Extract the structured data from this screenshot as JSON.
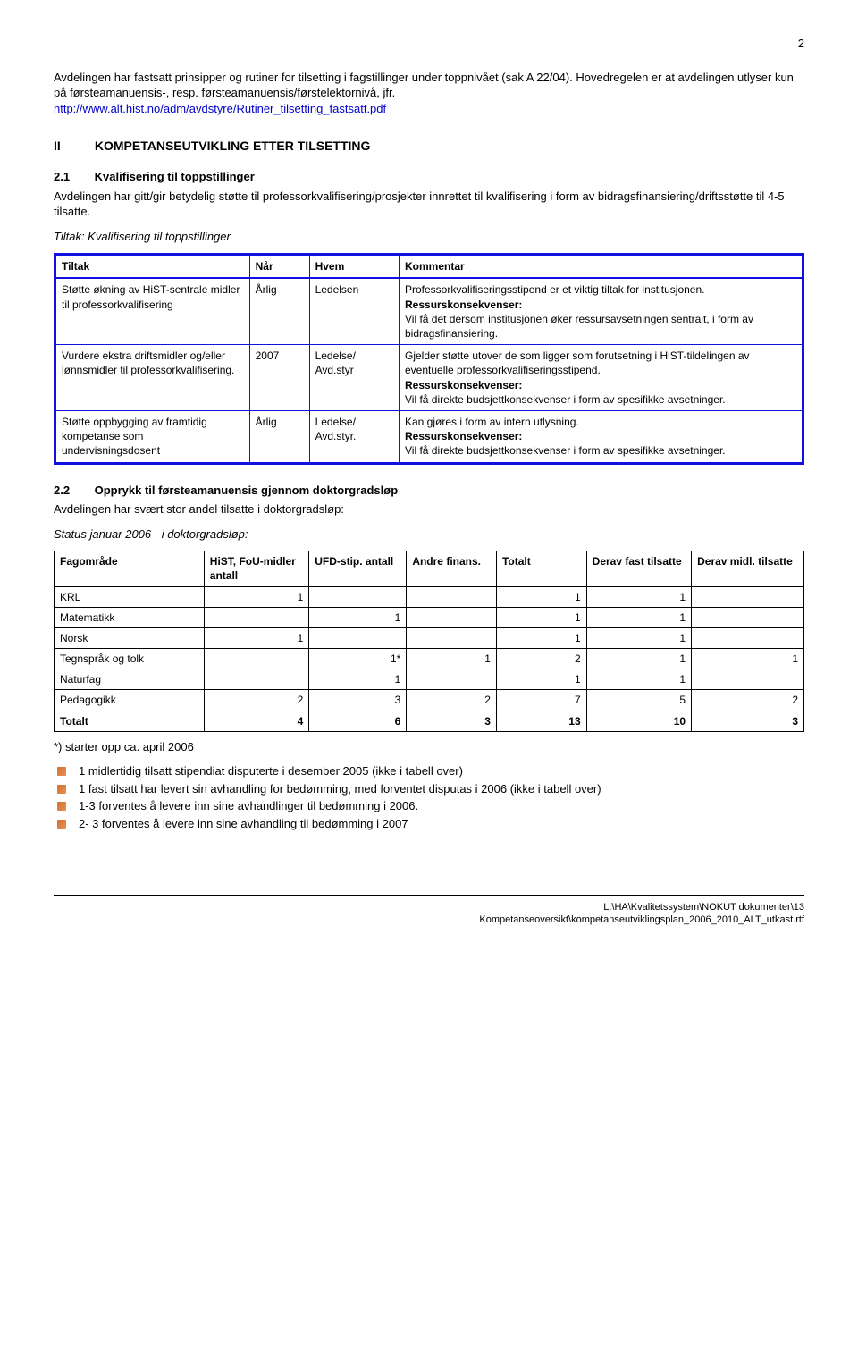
{
  "page_number": "2",
  "intro": {
    "p1": "Avdelingen har fastsatt prinsipper og rutiner for tilsetting i fagstillinger under toppnivået (sak A 22/04). Hovedregelen er at avdelingen utlyser kun på førsteamanuensis-, resp. førsteamanuensis/førstelektornivå, jfr.",
    "link": "http://www.alt.hist.no/adm/avdstyre/Rutiner_tilsetting_fastsatt.pdf"
  },
  "sectionII": {
    "num": "II",
    "title": "KOMPETANSEUTVIKLING ETTER TILSETTING"
  },
  "sub21": {
    "num": "2.1",
    "title": "Kvalifisering til toppstillinger",
    "para": "Avdelingen har gitt/gir betydelig støtte til professorkvalifisering/prosjekter innrettet til kvalifisering i form av bidragsfinansiering/driftsstøtte til 4-5 tilsatte.",
    "caption": "Tiltak: Kvalifisering til toppstillinger"
  },
  "table21": {
    "headers": [
      "Tiltak",
      "Når",
      "Hvem",
      "Kommentar"
    ],
    "rows": [
      {
        "tiltak": "Støtte økning av HiST-sentrale midler til professorkvalifisering",
        "nar": "Årlig",
        "hvem": "Ledelsen",
        "kommentar_lines": [
          {
            "text": "Professorkvalifiseringsstipend er et viktig tiltak for institusjonen."
          },
          {
            "text": "Ressurskonsekvenser:",
            "bold": true
          },
          {
            "text": "Vil få det dersom institusjonen øker ressursavsetningen sentralt, i form av bidragsfinansiering."
          }
        ]
      },
      {
        "tiltak": "Vurdere ekstra driftsmidler og/eller lønnsmidler til professorkvalifisering.",
        "nar": "2007",
        "hvem": "Ledelse/ Avd.styr",
        "kommentar_lines": [
          {
            "text": "Gjelder støtte utover de som ligger som forutsetning i HiST-tildelingen av eventuelle professorkvalifiseringsstipend."
          },
          {
            "text": "Ressurskonsekvenser:",
            "bold": true
          },
          {
            "text": "Vil få direkte budsjettkonsekvenser i form av spesifikke avsetninger."
          }
        ]
      },
      {
        "tiltak": "Støtte oppbygging av framtidig kompetanse som undervisningsdosent",
        "nar": "Årlig",
        "hvem": "Ledelse/ Avd.styr.",
        "kommentar_lines": [
          {
            "text": "Kan gjøres i form av intern utlysning."
          },
          {
            "text": "Ressurskonsekvenser:",
            "bold": true
          },
          {
            "text": "Vil få direkte budsjettkonsekvenser i form av spesifikke avsetninger."
          }
        ]
      }
    ]
  },
  "sub22": {
    "num": "2.2",
    "title": "Opprykk til førsteamanuensis gjennom doktorgradsløp",
    "para": "Avdelingen har svært stor andel tilsatte i doktorgradsløp:",
    "caption": "Status januar 2006 - i doktorgradsløp:"
  },
  "table22": {
    "headers": [
      "Fagområde",
      "HiST, FoU-midler antall",
      "UFD-stip. antall",
      "Andre finans.",
      "Totalt",
      "Derav fast tilsatte",
      "Derav midl. tilsatte"
    ],
    "rows": [
      {
        "c0": "KRL",
        "c1": "1",
        "c2": "",
        "c3": "",
        "c4": "1",
        "c5": "1",
        "c6": ""
      },
      {
        "c0": "Matematikk",
        "c1": "",
        "c2": "1",
        "c3": "",
        "c4": "1",
        "c5": "1",
        "c6": ""
      },
      {
        "c0": "Norsk",
        "c1": "1",
        "c2": "",
        "c3": "",
        "c4": "1",
        "c5": "1",
        "c6": ""
      },
      {
        "c0": "Tegnspråk og tolk",
        "c1": "",
        "c2": "1*",
        "c3": "1",
        "c4": "2",
        "c5": "1",
        "c6": "1"
      },
      {
        "c0": "Naturfag",
        "c1": "",
        "c2": "1",
        "c3": "",
        "c4": "1",
        "c5": "1",
        "c6": ""
      },
      {
        "c0": "Pedagogikk",
        "c1": "2",
        "c2": "3",
        "c3": "2",
        "c4": "7",
        "c5": "5",
        "c6": "2"
      }
    ],
    "total": {
      "c0": "Totalt",
      "c1": "4",
      "c2": "6",
      "c3": "3",
      "c4": "13",
      "c5": "10",
      "c6": "3"
    },
    "footnote": "*) starter opp ca. april 2006"
  },
  "bullets": [
    "1 midlertidig tilsatt stipendiat disputerte i desember 2005 (ikke i tabell over)",
    "1 fast tilsatt har levert sin avhandling for bedømming, med forventet disputas i 2006  (ikke i tabell over)",
    "1-3 forventes å levere inn sine avhandlinger til bedømming i 2006.",
    "2- 3 forventes å levere inn sine avhandling til bedømming i 2007"
  ],
  "footer": {
    "line1": "L:\\HA\\Kvalitetssystem\\NOKUT dokumenter\\13",
    "line2": "Kompetanseoversikt\\kompetanseutviklingsplan_2006_2010_ALT_utkast.rtf"
  }
}
